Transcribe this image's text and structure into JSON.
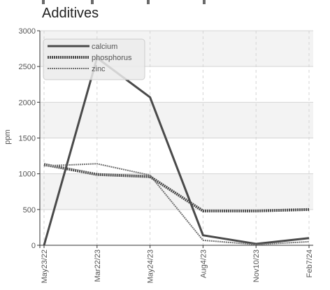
{
  "chart_data": {
    "type": "line",
    "title": "Additives",
    "ylabel": "ppm",
    "xlabel": "",
    "ylim": [
      0,
      3000
    ],
    "y_ticks": [
      0,
      500,
      1000,
      1500,
      2000,
      2500,
      3000
    ],
    "categories": [
      "May23/22",
      "Mar22/23",
      "May24/23",
      "Aug4/23",
      "Nov10/23",
      "Feb7/24"
    ],
    "grid": true,
    "legend_position": "top-left",
    "series": [
      {
        "name": "calcium",
        "values": [
          0,
          2620,
          2070,
          140,
          20,
          100
        ],
        "color": "#4a4a4a",
        "style": "solid"
      },
      {
        "name": "phosphorus",
        "values": [
          1130,
          990,
          960,
          480,
          480,
          500
        ],
        "color": "#4a4a4a",
        "style": "dotted"
      },
      {
        "name": "zinc",
        "values": [
          1110,
          1140,
          980,
          70,
          10,
          50
        ],
        "color": "#707070",
        "style": "dotted-thin"
      }
    ]
  }
}
